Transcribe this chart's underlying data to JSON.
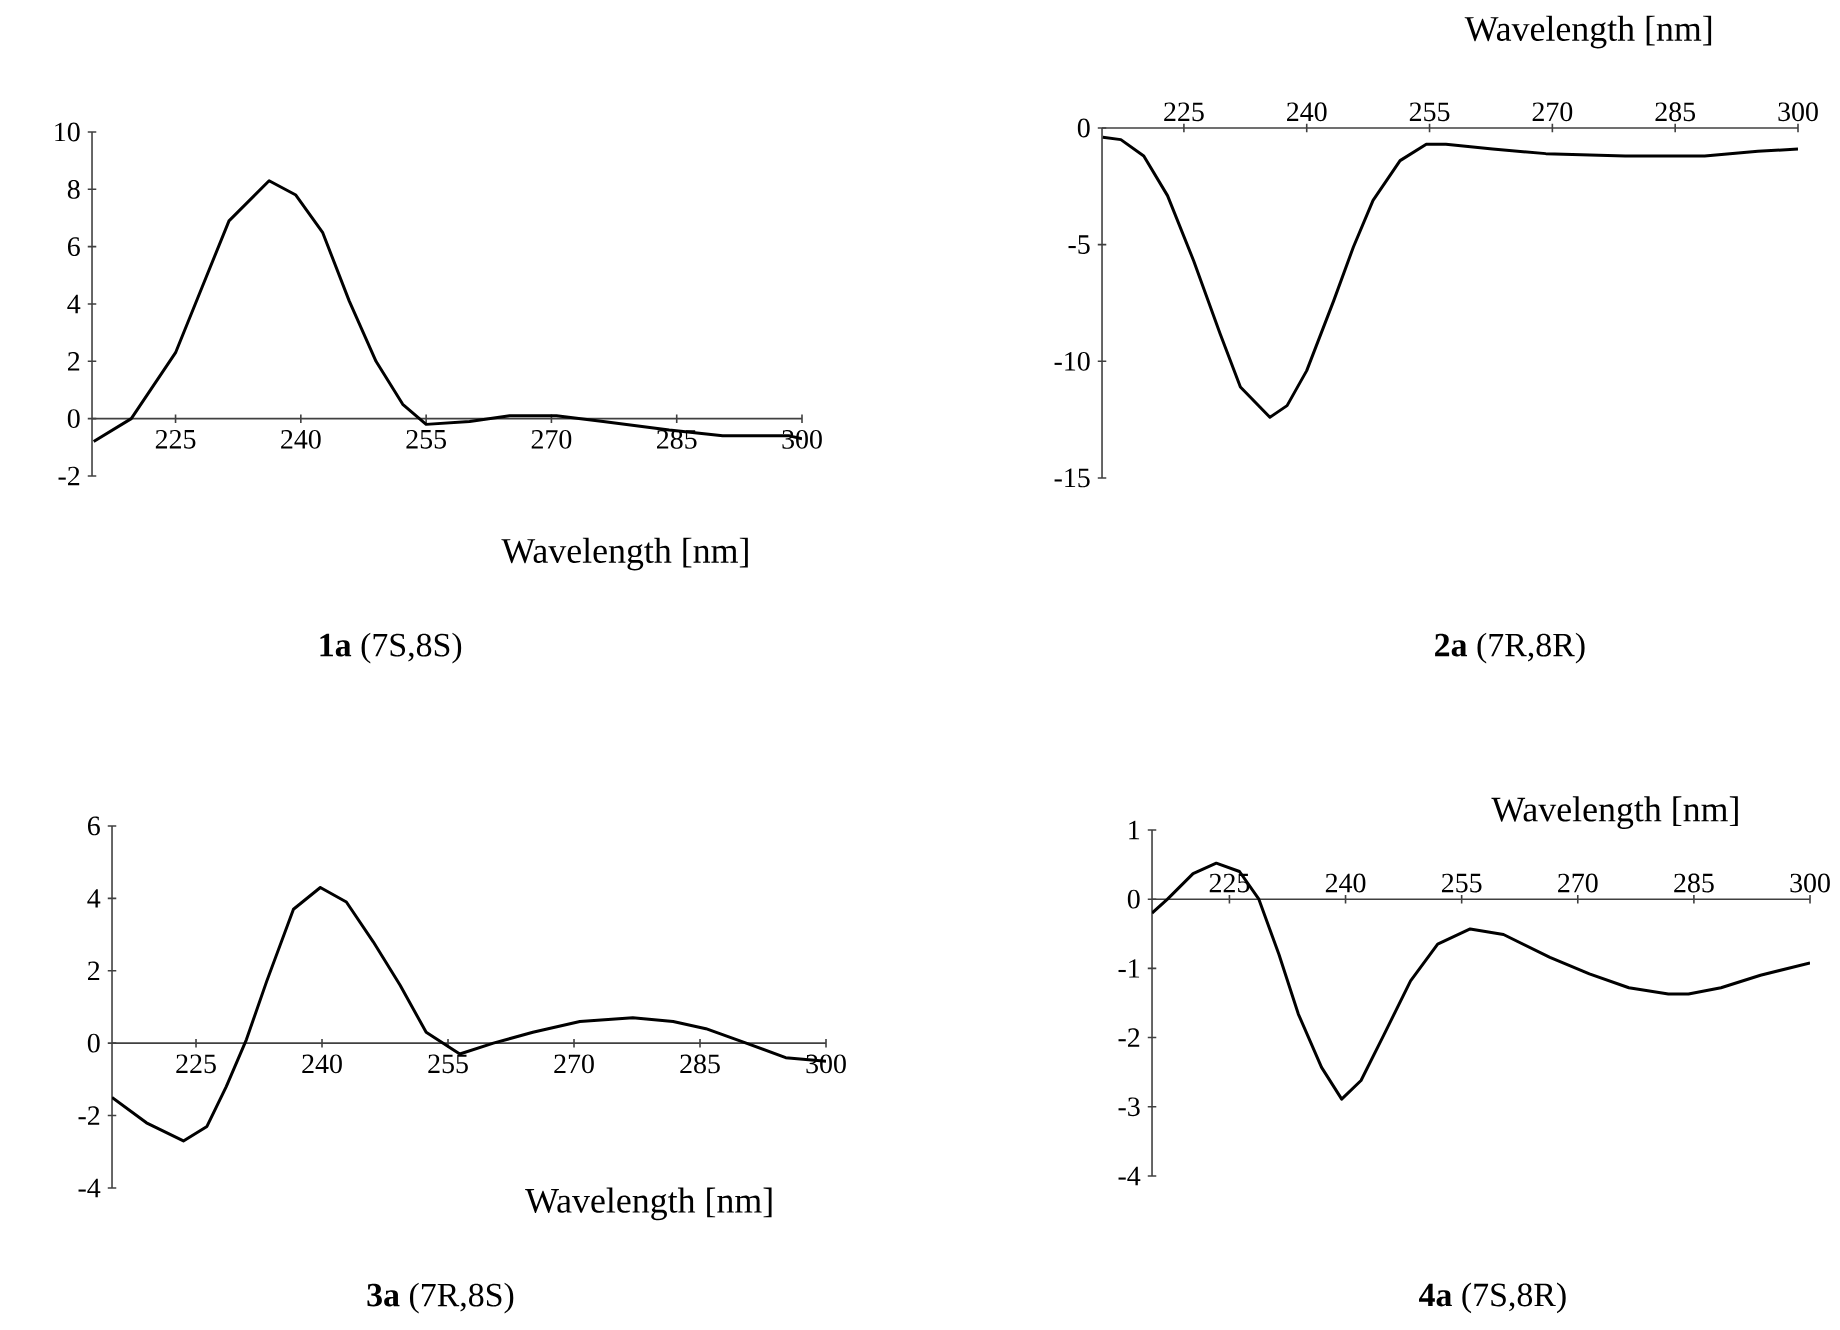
{
  "chart_data": [
    {
      "type": "line",
      "title": "**1a** (7S,8S)",
      "xlabel": "Wavelength [nm]",
      "xlim": [
        215,
        300
      ],
      "ylim": [
        -2,
        10
      ],
      "xticks": [
        225,
        240,
        255,
        270,
        285,
        300
      ],
      "yticks": [
        -2,
        0,
        2,
        4,
        6,
        8,
        10
      ],
      "color": "#000000",
      "x": [
        215.2,
        219.7,
        225,
        228.2,
        231.4,
        236.2,
        239.4,
        242.6,
        245.8,
        249,
        252.2,
        255,
        260.2,
        265,
        270.6,
        276.2,
        284.1,
        290.5,
        298.5,
        300
      ],
      "values": [
        -0.8,
        0,
        2.3,
        4.6,
        6.9,
        8.3,
        7.8,
        6.5,
        4.1,
        2,
        0.5,
        -0.2,
        -0.1,
        0.1,
        0.1,
        -0.1,
        -0.4,
        -0.6,
        -0.6,
        -0.7
      ]
    },
    {
      "type": "line",
      "title": "**2a** (7R,8R)",
      "xlabel": "Wavelength [nm]",
      "xlim": [
        215,
        300
      ],
      "ylim": [
        -15,
        0
      ],
      "xticks": [
        225,
        240,
        255,
        270,
        285,
        300
      ],
      "yticks": [
        -15,
        -10,
        -5,
        0
      ],
      "color": "#000000",
      "x": [
        215.1,
        217.3,
        220.1,
        223,
        226.2,
        229.4,
        231.9,
        235.5,
        237.6,
        240,
        243.3,
        245.7,
        248.1,
        251.4,
        254.6,
        257,
        262.7,
        269.2,
        278.9,
        288.6,
        295.1,
        300
      ],
      "values": [
        -0.4,
        -0.5,
        -1.2,
        -2.9,
        -5.7,
        -8.8,
        -11.1,
        -12.4,
        -11.9,
        -10.4,
        -7.4,
        -5.1,
        -3.1,
        -1.4,
        -0.7,
        -0.7,
        -0.9,
        -1.1,
        -1.2,
        -1.2,
        -1,
        -0.9
      ]
    },
    {
      "type": "line",
      "title": "**3a** (7R,8S)",
      "xlabel": "Wavelength [nm]",
      "xlim": [
        215,
        300
      ],
      "ylim": [
        -4,
        6
      ],
      "xticks": [
        225,
        240,
        255,
        270,
        285,
        300
      ],
      "yticks": [
        -4,
        -2,
        0,
        2,
        4,
        6
      ],
      "color": "#000000",
      "x": [
        215,
        219.1,
        223.5,
        226.3,
        228.6,
        231,
        233.4,
        236.6,
        239.8,
        242.9,
        246.1,
        249.3,
        252.4,
        256.4,
        260.4,
        265.1,
        270.7,
        277,
        281.8,
        285.7,
        290.5,
        295.2,
        300
      ],
      "values": [
        -1.5,
        -2.2,
        -2.7,
        -2.3,
        -1.2,
        0.1,
        1.7,
        3.7,
        4.3,
        3.9,
        2.8,
        1.6,
        0.3,
        -0.3,
        0,
        0.3,
        0.6,
        0.7,
        0.6,
        0.4,
        0,
        -0.4,
        -0.5
      ]
    },
    {
      "type": "line",
      "title": "**4a** (7S,8R)",
      "xlabel": "Wavelength [nm]",
      "xlim": [
        215,
        300
      ],
      "ylim": [
        -4,
        1
      ],
      "xticks": [
        225,
        240,
        255,
        270,
        285,
        300
      ],
      "yticks": [
        -4,
        -3,
        -2,
        -1,
        0,
        1
      ],
      "color": "#000000",
      "x": [
        215,
        217,
        220.3,
        223.3,
        226.3,
        228.8,
        231.4,
        233.9,
        236.9,
        239.5,
        242,
        245,
        248.4,
        251.9,
        256.1,
        260.4,
        266.4,
        271.5,
        276.6,
        281.7,
        284.3,
        288.5,
        293.6,
        300
      ],
      "values": [
        -0.2,
        0,
        0.37,
        0.52,
        0.4,
        0,
        -0.8,
        -1.66,
        -2.43,
        -2.89,
        -2.62,
        -1.95,
        -1.18,
        -0.65,
        -0.43,
        -0.51,
        -0.84,
        -1.08,
        -1.28,
        -1.37,
        -1.37,
        -1.28,
        -1.1,
        -0.92
      ]
    }
  ]
}
